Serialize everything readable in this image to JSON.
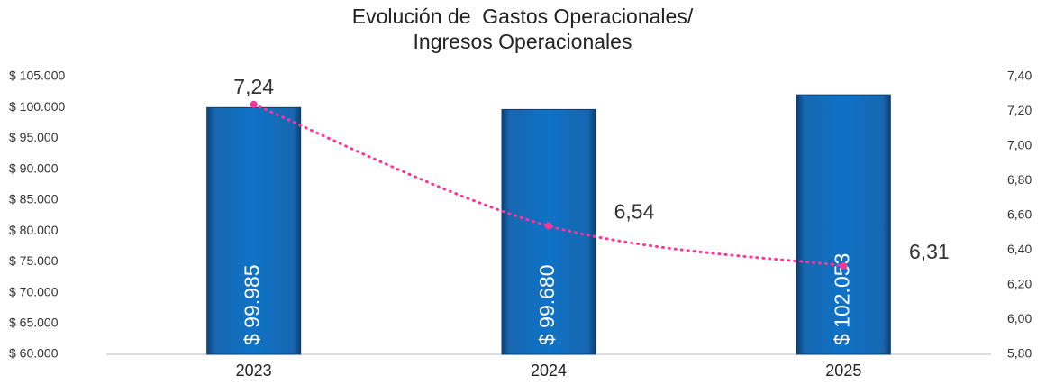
{
  "chart_data": {
    "type": "bar",
    "title": [
      "Evolución de  Gastos Operacionales/",
      "Ingresos Operacionales"
    ],
    "categories": [
      "2023",
      "2024",
      "2025"
    ],
    "series": [
      {
        "color": "#0070c0",
        "values": [
          99985,
          99680,
          102053
        ],
        "value_labels": [
          "$ 99.985",
          "$ 99.680",
          "$ 102.053"
        ]
      },
      {
        "type": "line",
        "axis": "y2",
        "color": "#ff3399",
        "values": [
          7.24,
          6.54,
          6.31
        ],
        "value_labels": [
          "7,24",
          "6,54",
          "6,31"
        ]
      }
    ],
    "ylim": [
      60000,
      105000
    ],
    "yticks": [
      {
        "value": 60000,
        "label": "$ 60.000"
      },
      {
        "value": 65000,
        "label": "$ 65.000"
      },
      {
        "value": 70000,
        "label": "$ 70.000"
      },
      {
        "value": 75000,
        "label": "$ 75.000"
      },
      {
        "value": 80000,
        "label": "$ 80.000"
      },
      {
        "value": 85000,
        "label": "$ 85.000"
      },
      {
        "value": 90000,
        "label": "$ 90.000"
      },
      {
        "value": 95000,
        "label": "$ 95.000"
      },
      {
        "value": 100000,
        "label": "$ 100.000"
      },
      {
        "value": 105000,
        "label": "$ 105.000"
      }
    ],
    "y2lim": [
      5.8,
      7.4
    ],
    "y2ticks": [
      {
        "value": 5.8,
        "label": "5,80"
      },
      {
        "value": 6.0,
        "label": "6,00"
      },
      {
        "value": 6.2,
        "label": "6,20"
      },
      {
        "value": 6.4,
        "label": "6,40"
      },
      {
        "value": 6.6,
        "label": "6,60"
      },
      {
        "value": 6.8,
        "label": "6,80"
      },
      {
        "value": 7.0,
        "label": "7,00"
      },
      {
        "value": 7.2,
        "label": "7,20"
      },
      {
        "value": 7.4,
        "label": "7,40"
      }
    ],
    "grid": false
  }
}
